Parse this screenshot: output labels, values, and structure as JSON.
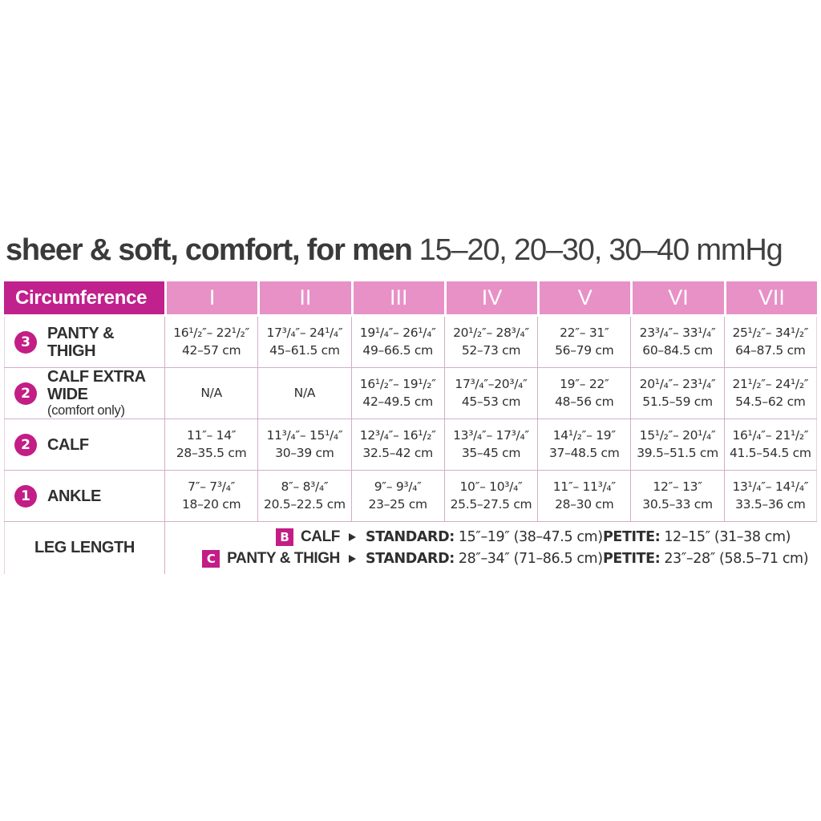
{
  "title": {
    "product": "sheer & soft, comfort, for men",
    "pressures": "15–20, 20–30, 30–40 mmHg"
  },
  "colors": {
    "header_dark_magenta": "#c0218c",
    "header_light_pink": "#e791c7",
    "badge_magenta": "#c31d86",
    "grid_line": "#d3aec8",
    "text": "#2f2f2f"
  },
  "icons": {
    "arrow_right": "right-pointing-triangle"
  },
  "table": {
    "corner": "Circumference",
    "columns": [
      "I",
      "II",
      "III",
      "IV",
      "V",
      "VI",
      "VII"
    ],
    "rows": [
      {
        "badge": "3",
        "label": "PANTY & THIGH",
        "sublabel": "",
        "cells": [
          {
            "in": "16¹/₂″– 22¹/₂″",
            "cm": "42–57 cm"
          },
          {
            "in": "17³/₄″– 24¹/₄″",
            "cm": "45–61.5 cm"
          },
          {
            "in": "19¹/₄″– 26¹/₄″",
            "cm": "49–66.5 cm"
          },
          {
            "in": "20¹/₂″– 28³/₄″",
            "cm": "52–73 cm"
          },
          {
            "in": "22″– 31″",
            "cm": "56–79 cm"
          },
          {
            "in": "23³/₄″– 33¹/₄″",
            "cm": "60–84.5 cm"
          },
          {
            "in": "25¹/₂″– 34¹/₂″",
            "cm": "64–87.5 cm"
          }
        ]
      },
      {
        "badge": "2",
        "label": "CALF EXTRA WIDE",
        "sublabel": "(comfort only)",
        "cells": [
          {
            "in": "N/A",
            "cm": ""
          },
          {
            "in": "N/A",
            "cm": ""
          },
          {
            "in": "16¹/₂″– 19¹/₂″",
            "cm": "42–49.5 cm"
          },
          {
            "in": "17³/₄″–20³/₄″",
            "cm": "45–53 cm"
          },
          {
            "in": "19″– 22″",
            "cm": "48–56 cm"
          },
          {
            "in": "20¹/₄″– 23¹/₄″",
            "cm": "51.5–59 cm"
          },
          {
            "in": "21¹/₂″– 24¹/₂″",
            "cm": "54.5–62 cm"
          }
        ]
      },
      {
        "badge": "2",
        "label": "CALF",
        "sublabel": "",
        "cells": [
          {
            "in": "11″– 14″",
            "cm": "28–35.5 cm"
          },
          {
            "in": "11³/₄″– 15¹/₄″",
            "cm": "30–39 cm"
          },
          {
            "in": "12³/₄″– 16¹/₂″",
            "cm": "32.5–42 cm"
          },
          {
            "in": "13³/₄″– 17³/₄″",
            "cm": "35–45 cm"
          },
          {
            "in": "14¹/₂″– 19″",
            "cm": "37–48.5 cm"
          },
          {
            "in": "15¹/₂″– 20¹/₄″",
            "cm": "39.5–51.5 cm"
          },
          {
            "in": "16¹/₄″– 21¹/₂″",
            "cm": "41.5–54.5 cm"
          }
        ]
      },
      {
        "badge": "1",
        "label": "ANKLE",
        "sublabel": "",
        "cells": [
          {
            "in": "7″– 7³/₄″",
            "cm": "18–20 cm"
          },
          {
            "in": "8″– 8³/₄″",
            "cm": "20.5–22.5 cm"
          },
          {
            "in": "9″– 9³/₄″",
            "cm": "23–25 cm"
          },
          {
            "in": "10″– 10³/₄″",
            "cm": "25.5–27.5 cm"
          },
          {
            "in": "11″– 11³/₄″",
            "cm": "28–30 cm"
          },
          {
            "in": "12″– 13″",
            "cm": "30.5–33 cm"
          },
          {
            "in": "13¹/₄″– 14¹/₄″",
            "cm": "33.5–36 cm"
          }
        ]
      }
    ],
    "leg_length": {
      "label": "LEG LENGTH",
      "lines": [
        {
          "badge": "B",
          "name": "CALF",
          "standard_label": "STANDARD:",
          "standard_value": "15″–19″ (38–47.5 cm)",
          "petite_label": "PETITE:",
          "petite_value": "12–15″ (31–38 cm)"
        },
        {
          "badge": "C",
          "name": "PANTY & THIGH",
          "standard_label": "STANDARD:",
          "standard_value": "28″–34″ (71–86.5 cm)",
          "petite_label": "PETITE:",
          "petite_value": "23″–28″ (58.5–71 cm)"
        }
      ]
    }
  }
}
